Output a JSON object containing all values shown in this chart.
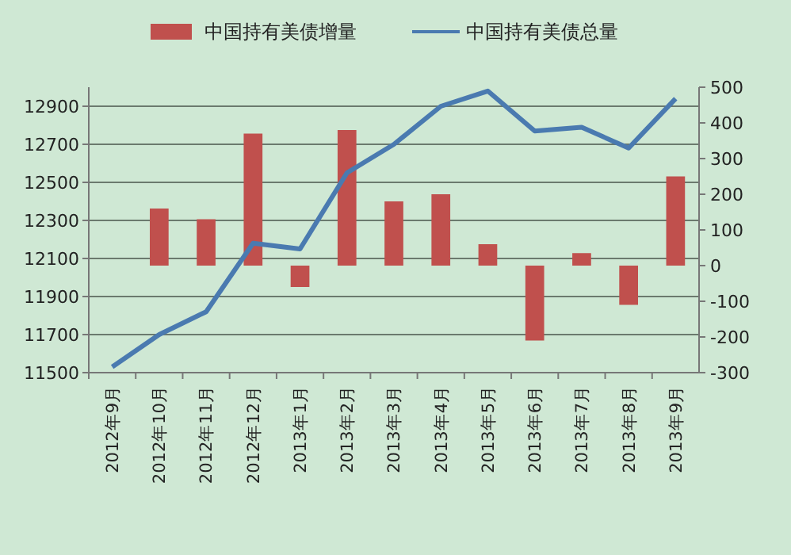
{
  "chart_data": {
    "type": "bar",
    "categories": [
      "2012年9月",
      "2012年10月",
      "2012年11月",
      "2012年12月",
      "2013年1月",
      "2013年2月",
      "2013年3月",
      "2013年4月",
      "2013年5月",
      "2013年6月",
      "2013年7月",
      "2013年8月",
      "2013年9月"
    ],
    "series": [
      {
        "name": "中国持有美债增量",
        "axis": "y2",
        "color": "#c0504d",
        "values": [
          null,
          160,
          130,
          370,
          -60,
          380,
          180,
          200,
          60,
          -210,
          35,
          -110,
          250
        ]
      },
      {
        "name": "中国持有美债总量",
        "type": "line",
        "color": "#4a7ab0",
        "values": [
          11530,
          11700,
          11820,
          12180,
          12150,
          12550,
          12700,
          12900,
          12980,
          12770,
          12790,
          12680,
          12940
        ]
      }
    ],
    "ylim": [
      11500,
      13000
    ],
    "yticks": [
      11500,
      11700,
      11900,
      12100,
      12300,
      12500,
      12700,
      12900
    ],
    "y2lim": [
      -300,
      500
    ],
    "y2ticks": [
      -300,
      -200,
      -100,
      0,
      100,
      200,
      300,
      400,
      500
    ],
    "grid": "y",
    "legend": "top",
    "marker": "none",
    "line_style": "solid"
  }
}
